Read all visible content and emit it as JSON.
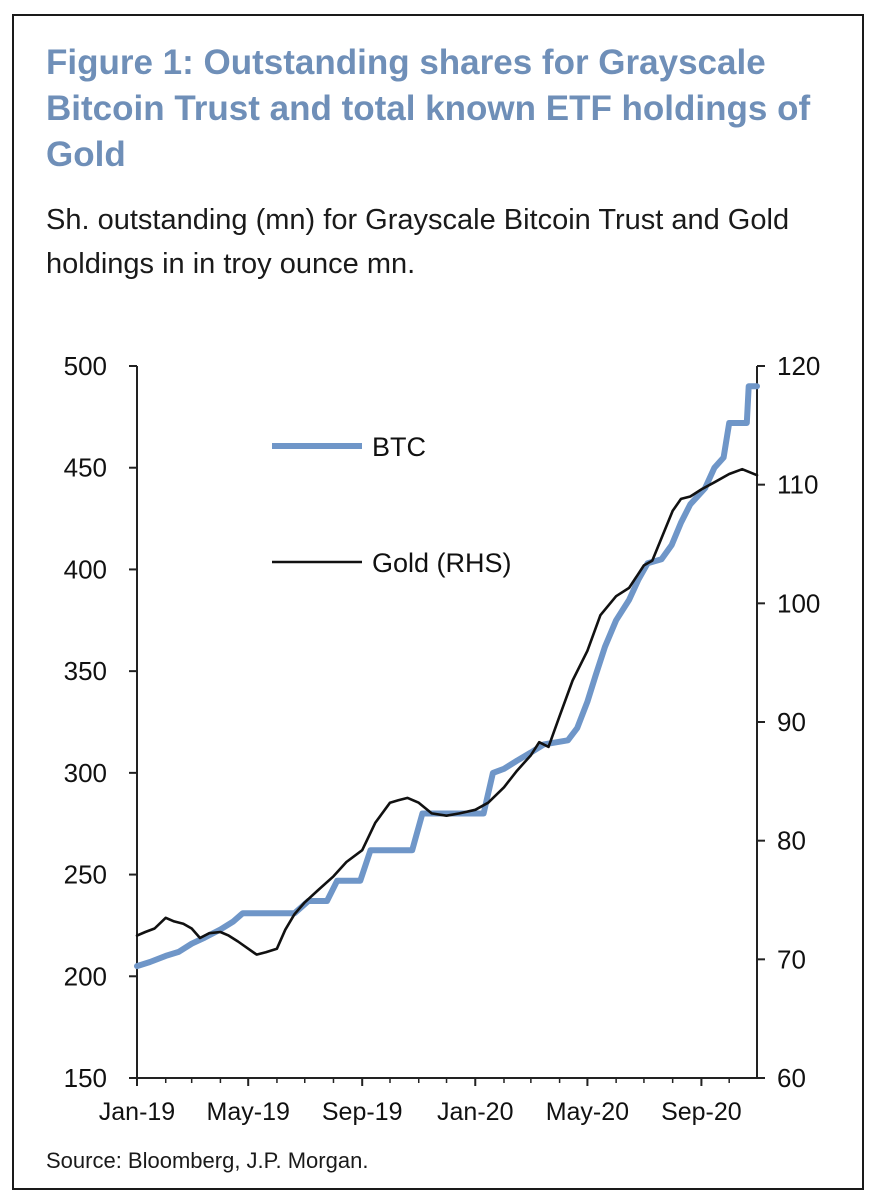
{
  "title": "Figure 1: Outstanding shares for Grayscale Bitcoin Trust and total known ETF holdings of Gold",
  "subtitle": "Sh. outstanding (mn) for Grayscale Bitcoin Trust and Gold holdings in in troy ounce mn.",
  "source": "Source: Bloomberg, J.P. Morgan.",
  "chart_data": {
    "type": "line",
    "xlim": [
      "2019-01-01",
      "2020-10-31"
    ],
    "x_ticks": [
      "Jan-19",
      "May-19",
      "Sep-19",
      "Jan-20",
      "May-20",
      "Sep-20"
    ],
    "y_left": {
      "lim": [
        150,
        500
      ],
      "ticks": [
        "150",
        "200",
        "250",
        "300",
        "350",
        "400",
        "450",
        "500"
      ]
    },
    "y_right": {
      "lim": [
        60,
        120
      ],
      "ticks": [
        "60",
        "70",
        "80",
        "90",
        "100",
        "110",
        "120"
      ]
    },
    "legend_placement": "top-left",
    "grid": false,
    "series": [
      {
        "name": "BTC",
        "axis": "left",
        "color": "#6f96c8",
        "points": [
          [
            "2019-01-01",
            205
          ],
          [
            "2019-01-15",
            207
          ],
          [
            "2019-02-01",
            210
          ],
          [
            "2019-02-15",
            212
          ],
          [
            "2019-03-01",
            216
          ],
          [
            "2019-03-15",
            219
          ],
          [
            "2019-04-01",
            223
          ],
          [
            "2019-04-15",
            227
          ],
          [
            "2019-04-25",
            231
          ],
          [
            "2019-06-01",
            231
          ],
          [
            "2019-06-20",
            231
          ],
          [
            "2019-07-05",
            237
          ],
          [
            "2019-07-25",
            237
          ],
          [
            "2019-08-05",
            247
          ],
          [
            "2019-08-30",
            247
          ],
          [
            "2019-09-10",
            262
          ],
          [
            "2019-10-10",
            262
          ],
          [
            "2019-10-25",
            262
          ],
          [
            "2019-11-05",
            280
          ],
          [
            "2019-12-20",
            280
          ],
          [
            "2020-01-10",
            280
          ],
          [
            "2020-01-20",
            300
          ],
          [
            "2020-02-01",
            302
          ],
          [
            "2020-02-15",
            306
          ],
          [
            "2020-03-01",
            310
          ],
          [
            "2020-03-15",
            314
          ],
          [
            "2020-04-10",
            316
          ],
          [
            "2020-04-20",
            322
          ],
          [
            "2020-05-01",
            335
          ],
          [
            "2020-05-10",
            348
          ],
          [
            "2020-05-20",
            362
          ],
          [
            "2020-06-01",
            375
          ],
          [
            "2020-06-15",
            385
          ],
          [
            "2020-06-25",
            395
          ],
          [
            "2020-07-05",
            403
          ],
          [
            "2020-07-20",
            405
          ],
          [
            "2020-07-31",
            412
          ],
          [
            "2020-08-10",
            423
          ],
          [
            "2020-08-20",
            432
          ],
          [
            "2020-09-05",
            440
          ],
          [
            "2020-09-15",
            450
          ],
          [
            "2020-09-25",
            455
          ],
          [
            "2020-10-01",
            472
          ],
          [
            "2020-10-20",
            472
          ],
          [
            "2020-10-22",
            490
          ],
          [
            "2020-10-31",
            490
          ]
        ]
      },
      {
        "name": "Gold (RHS)",
        "axis": "right",
        "color": "#111111",
        "points": [
          [
            "2019-01-01",
            72.0
          ],
          [
            "2019-01-10",
            72.3
          ],
          [
            "2019-01-20",
            72.6
          ],
          [
            "2019-02-01",
            73.5
          ],
          [
            "2019-02-10",
            73.2
          ],
          [
            "2019-02-20",
            73.0
          ],
          [
            "2019-03-01",
            72.6
          ],
          [
            "2019-03-10",
            71.8
          ],
          [
            "2019-03-20",
            72.2
          ],
          [
            "2019-04-01",
            72.3
          ],
          [
            "2019-04-10",
            72.0
          ],
          [
            "2019-04-20",
            71.5
          ],
          [
            "2019-05-01",
            70.9
          ],
          [
            "2019-05-10",
            70.4
          ],
          [
            "2019-05-20",
            70.6
          ],
          [
            "2019-06-01",
            70.9
          ],
          [
            "2019-06-10",
            72.5
          ],
          [
            "2019-06-20",
            73.8
          ],
          [
            "2019-07-01",
            74.8
          ],
          [
            "2019-07-15",
            75.8
          ],
          [
            "2019-08-01",
            77.0
          ],
          [
            "2019-08-15",
            78.2
          ],
          [
            "2019-09-01",
            79.2
          ],
          [
            "2019-09-15",
            81.5
          ],
          [
            "2019-10-01",
            83.2
          ],
          [
            "2019-10-10",
            83.4
          ],
          [
            "2019-10-20",
            83.6
          ],
          [
            "2019-11-01",
            83.2
          ],
          [
            "2019-11-15",
            82.3
          ],
          [
            "2019-12-01",
            82.1
          ],
          [
            "2019-12-15",
            82.3
          ],
          [
            "2020-01-01",
            82.6
          ],
          [
            "2020-01-15",
            83.2
          ],
          [
            "2020-02-01",
            84.5
          ],
          [
            "2020-02-15",
            85.9
          ],
          [
            "2020-03-01",
            87.2
          ],
          [
            "2020-03-10",
            88.3
          ],
          [
            "2020-03-20",
            87.9
          ],
          [
            "2020-04-01",
            90.5
          ],
          [
            "2020-04-15",
            93.5
          ],
          [
            "2020-05-01",
            96.0
          ],
          [
            "2020-05-15",
            99.0
          ],
          [
            "2020-06-01",
            100.6
          ],
          [
            "2020-06-15",
            101.3
          ],
          [
            "2020-07-01",
            103.2
          ],
          [
            "2020-07-10",
            103.6
          ],
          [
            "2020-07-20",
            105.5
          ],
          [
            "2020-08-01",
            107.8
          ],
          [
            "2020-08-10",
            108.8
          ],
          [
            "2020-08-20",
            109.0
          ],
          [
            "2020-09-01",
            109.6
          ],
          [
            "2020-09-15",
            110.2
          ],
          [
            "2020-10-01",
            110.9
          ],
          [
            "2020-10-15",
            111.3
          ],
          [
            "2020-10-31",
            110.8
          ]
        ]
      }
    ]
  }
}
